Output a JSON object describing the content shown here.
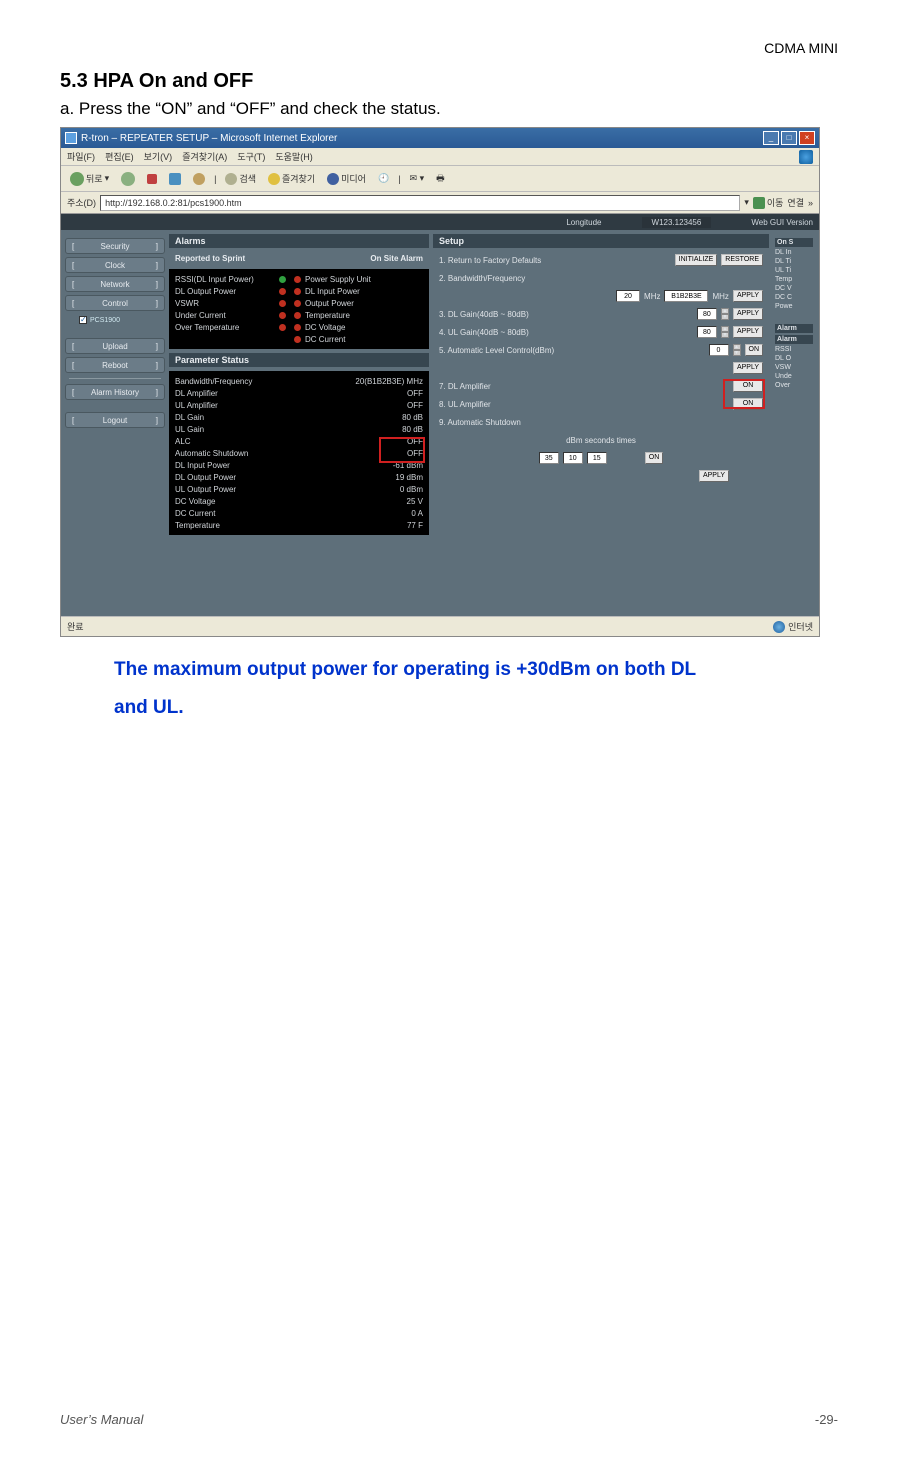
{
  "doc": {
    "header_right": "CDMA MINI",
    "section_title": "5.3 HPA On and OFF",
    "section_sub": "a. Press the “ON” and “OFF” and check the status.",
    "note_line1": "The maximum output power for operating is +30dBm on both DL",
    "note_line2": "and UL.",
    "footer_left": "User’s Manual",
    "footer_right": "-29-"
  },
  "ie": {
    "title": "R-tron – REPEATER SETUP – Microsoft Internet Explorer",
    "menus": [
      "파일(F)",
      "편집(E)",
      "보기(V)",
      "즐겨찾기(A)",
      "도구(T)",
      "도움말(H)"
    ],
    "tb_back": "뒤로",
    "tb_search": "검색",
    "tb_fav": "즐겨찾기",
    "tb_media": "미디어",
    "addr_label": "주소(D)",
    "addr_value": "http://192.168.0.2:81/pcs1900.htm",
    "go": "이동",
    "links": "연결",
    "status_done": "완료",
    "status_net": "인터넷"
  },
  "infobar": {
    "longitude_label": "Longitude",
    "longitude_val": "W123.123456",
    "gui_label": "Web GUI Version"
  },
  "nav": {
    "security": "Security",
    "clock": "Clock",
    "network": "Network",
    "control": "Control",
    "sub_pcs": "PCS1900",
    "upload": "Upload",
    "reboot": "Reboot",
    "alarm_history": "Alarm History",
    "logout": "Logout",
    "arrow": "]"
  },
  "alarms": {
    "title": "Alarms",
    "col1": "Reported to Sprint",
    "col2": "On Site Alarm",
    "rows_l": [
      "RSSI(DL Input Power)",
      "DL Output Power",
      "VSWR",
      "Under Current",
      "Over Temperature"
    ],
    "rows_r": [
      "Power Supply Unit",
      "DL Input Power",
      "Output Power",
      "Temperature",
      "DC Voltage",
      "DC Current"
    ]
  },
  "params": {
    "title": "Parameter Status",
    "rows": [
      {
        "k": "Bandwidth/Frequency",
        "v": "20(B1B2B3E) MHz"
      },
      {
        "k": "DL Amplifier",
        "v": "OFF"
      },
      {
        "k": "UL Amplifier",
        "v": "OFF"
      },
      {
        "k": "DL Gain",
        "v": "80 dB"
      },
      {
        "k": "UL Gain",
        "v": "80 dB"
      },
      {
        "k": "ALC",
        "v": "OFF"
      },
      {
        "k": "Automatic Shutdown",
        "v": "OFF"
      },
      {
        "k": "DL Input Power",
        "v": "-61 dBm"
      },
      {
        "k": "DL Output Power",
        "v": "19 dBm"
      },
      {
        "k": "UL Output Power",
        "v": "0 dBm"
      },
      {
        "k": "DC Voltage",
        "v": "25 V"
      },
      {
        "k": "DC Current",
        "v": "0 A"
      },
      {
        "k": "Temperature",
        "v": "77 F"
      }
    ]
  },
  "setup": {
    "title": "Setup",
    "r1": "1. Return to Factory Defaults",
    "r1_b1": "INITIALIZE",
    "r1_b2": "RESTORE",
    "r2": "2. Bandwidth/Frequency",
    "r2_v": "20",
    "r2_u": "MHz",
    "r2_sel": "B1B2B3E",
    "r2_u2": "MHz",
    "r2_b": "APPLY",
    "r3": "3. DL Gain(40dB ~ 80dB)",
    "r3_v": "80",
    "r3_b": "APPLY",
    "r4": "4. UL Gain(40dB ~ 80dB)",
    "r4_v": "80",
    "r4_b": "APPLY",
    "r5": "5. Automatic Level Control(dBm)",
    "r5_v": "0",
    "r5_b": "ON",
    "r5_b2": "APPLY",
    "r7": "7. DL Amplifier",
    "r7_b": "ON",
    "r8": "8. UL Amplifier",
    "r8_b": "ON",
    "r9": "9. Automatic Shutdown",
    "r9_l": "dBm  seconds  times",
    "r9_v1": "35",
    "r9_v2": "10",
    "r9_v3": "15",
    "r9_b": "ON",
    "r9_b2": "APPLY"
  },
  "farright": {
    "hdr": "On S",
    "items": [
      "DL In",
      "DL Ti",
      "UL Ti",
      "Temp",
      "DC V",
      "DC C",
      "Powe"
    ],
    "hdr2": "Alarm",
    "hdr3": "Alarm",
    "items2": [
      "RSSI",
      "DL O",
      "VSW",
      "Unde",
      "Over"
    ]
  },
  "styling": {
    "page_bg": "#ffffff",
    "app_bg": "#5e6f7a",
    "panel_header_bg": "#374650",
    "black_bg": "#000000",
    "text_light": "#e0e4e8",
    "led_red": "#c03020",
    "red_highlight": "#d02020",
    "note_color": "#0033cc",
    "ie_chrome": "#ece9d8",
    "titlebar_grad_top": "#3a6ea5",
    "titlebar_grad_bot": "#2a5a95"
  }
}
